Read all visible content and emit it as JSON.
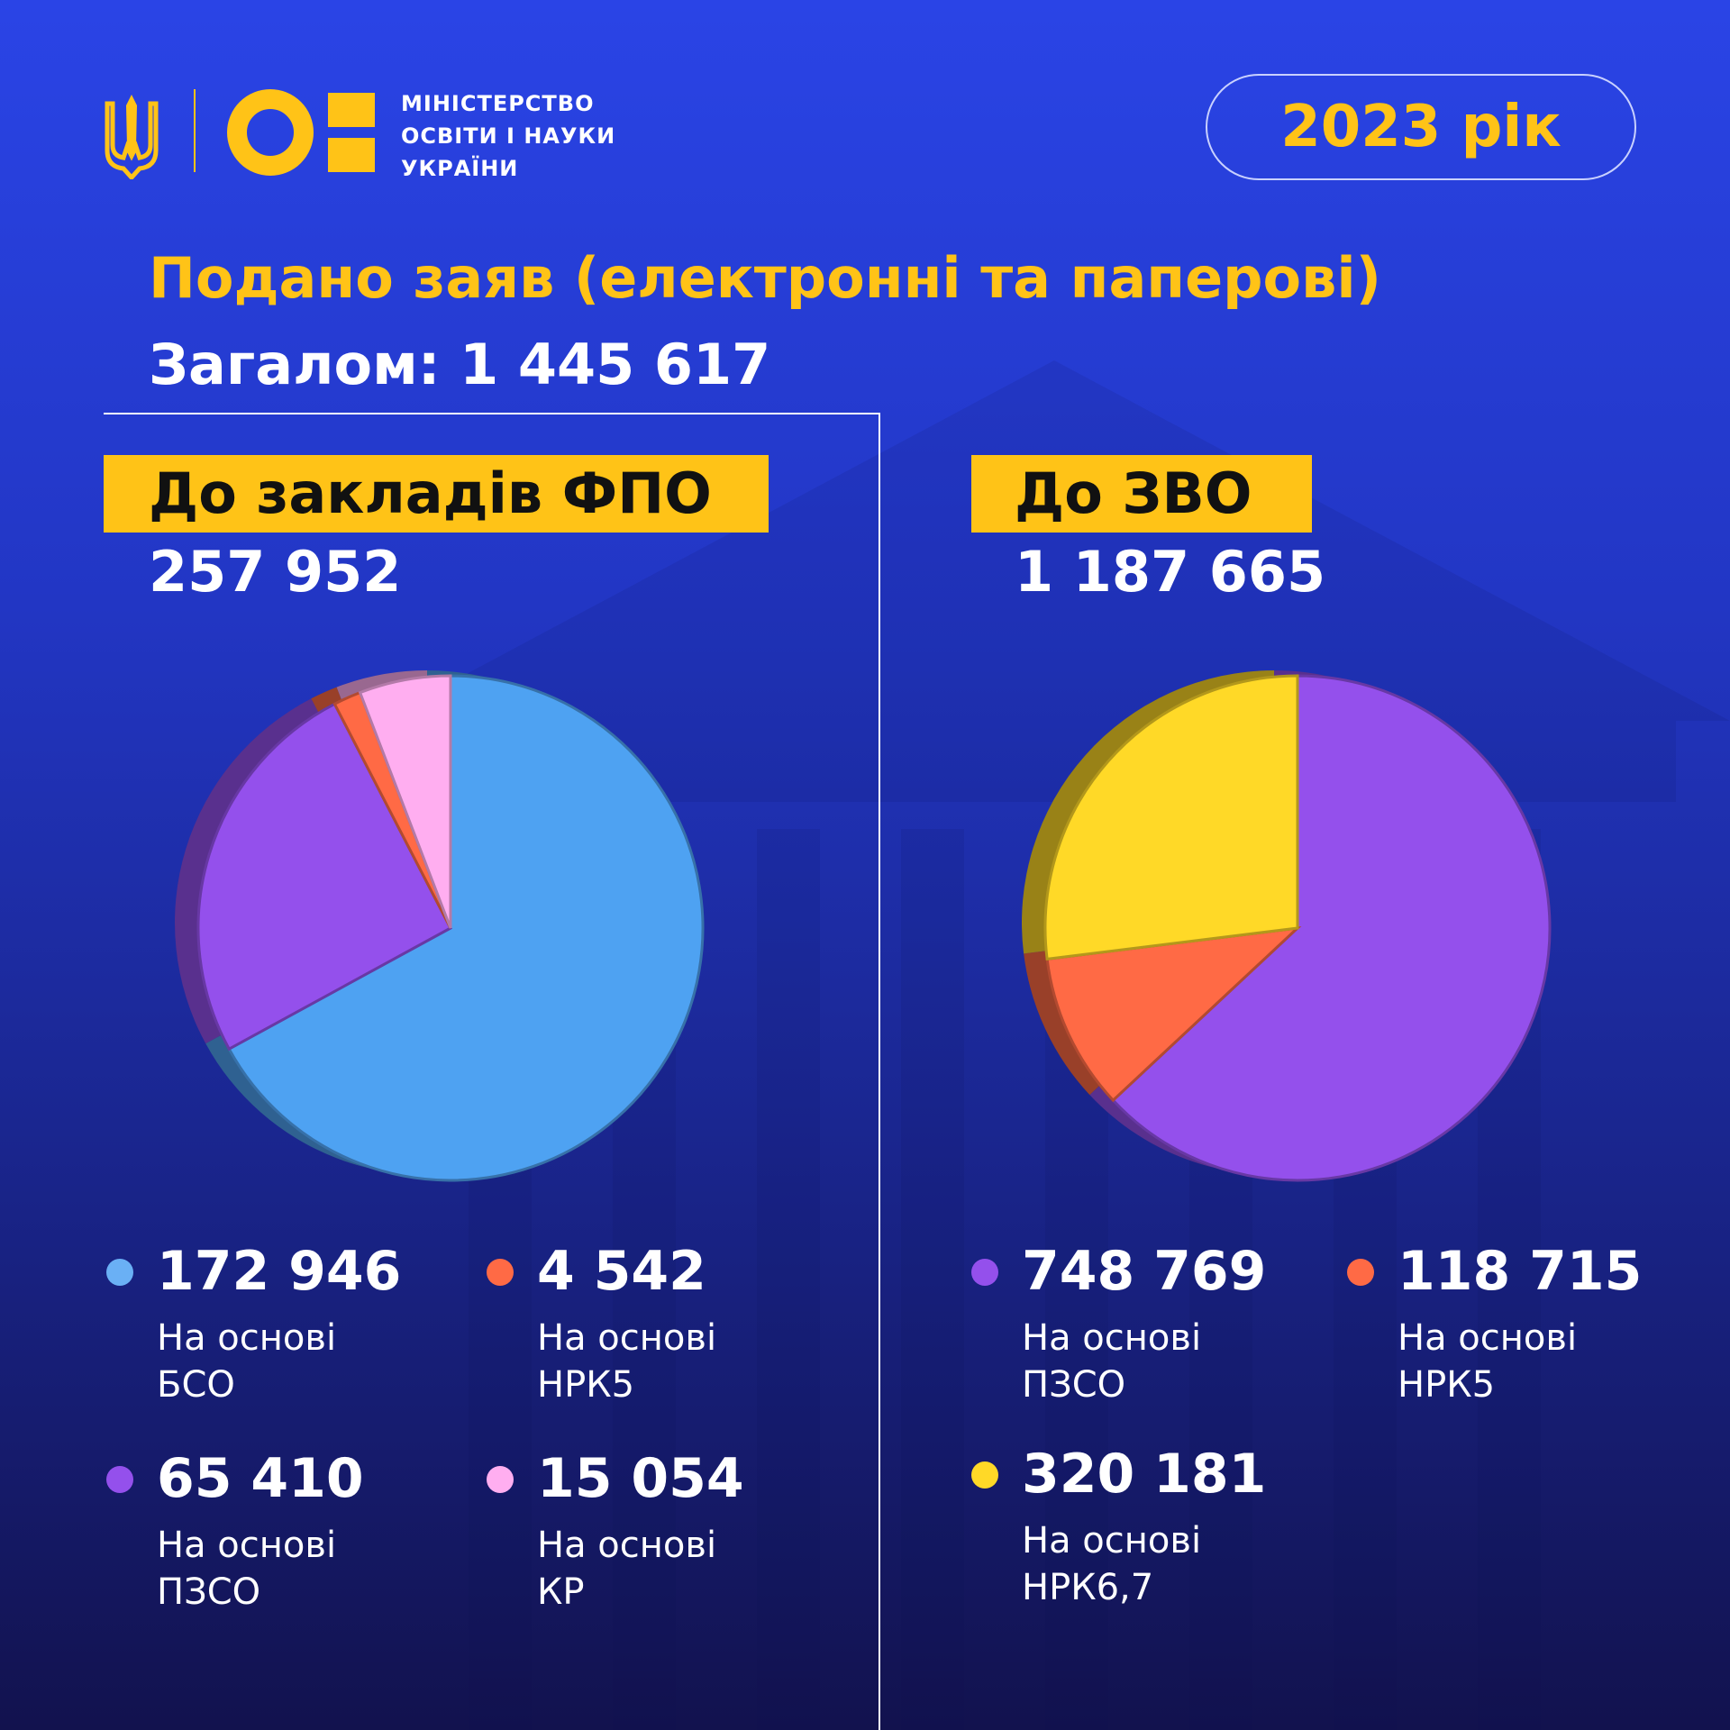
{
  "brand": {
    "ministry_name_lines": [
      "МІНІСТЕРСТВО",
      "ОСВІТИ І НАУКИ",
      "УКРАЇНИ"
    ],
    "year_label": "2023 рік"
  },
  "title": "Подано заяв (електронні та паперові)",
  "total_line": "Загалом: 1 445 617",
  "colors": {
    "background": "#2236c4",
    "accent_yellow": "#ffc317",
    "blue": "#4ea2f2",
    "purple": "#9450ec",
    "orange": "#ff6a45",
    "pink": "#ffaef0",
    "yellow": "#ffd927"
  },
  "sections": {
    "fpo": {
      "label": "До закладів ФПО",
      "total": "257 952",
      "items": [
        {
          "value": "172 946",
          "line1": "На основі",
          "line2": "БСО"
        },
        {
          "value": "4 542",
          "line1": "На основі",
          "line2": "НРК5"
        },
        {
          "value": "65 410",
          "line1": "На основі",
          "line2": "ПЗСО"
        },
        {
          "value": "15 054",
          "line1": "На основі",
          "line2": "КР"
        }
      ]
    },
    "zvo": {
      "label": "До ЗВО",
      "total": "1 187 665",
      "items": [
        {
          "value": "748 769",
          "line1": "На основі",
          "line2": "ПЗСО"
        },
        {
          "value": "118 715",
          "line1": "На основі",
          "line2": "НРК5"
        },
        {
          "value": "320 181",
          "line1": "На основі",
          "line2": "НРК6,7"
        }
      ]
    }
  },
  "chart_data": [
    {
      "type": "pie",
      "title": "До закладів ФПО",
      "categories": [
        "На основі БСО",
        "На основі ПЗСО",
        "На основі НРК5",
        "На основі КР"
      ],
      "values": [
        172946,
        65410,
        4542,
        15054
      ],
      "colors": [
        "#4ea2f2",
        "#9450ec",
        "#ff6a45",
        "#ffaef0"
      ]
    },
    {
      "type": "pie",
      "title": "До ЗВО",
      "categories": [
        "На основі ПЗСО",
        "На основі НРК5",
        "На основі НРК6,7"
      ],
      "values": [
        748769,
        118715,
        320181
      ],
      "colors": [
        "#9450ec",
        "#ff6a45",
        "#ffd927"
      ]
    }
  ]
}
